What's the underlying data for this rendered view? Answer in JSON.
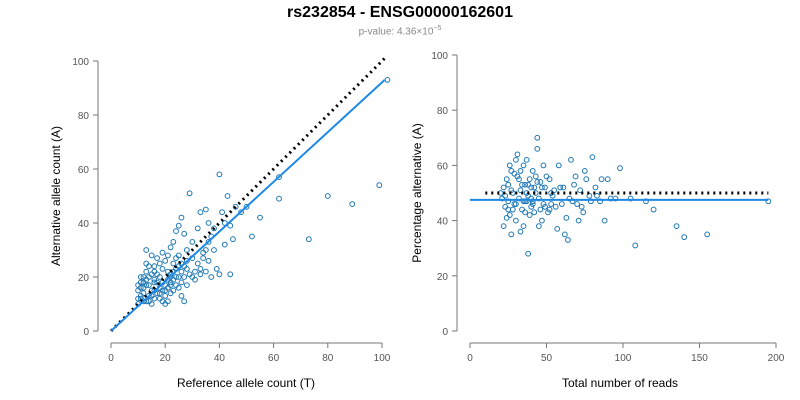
{
  "title": "rs232854 - ENSG00000162601",
  "subtitle_prefix": "p-value: 4.36×10",
  "subtitle_exponent": "−5",
  "chart_data": [
    {
      "type": "scatter",
      "xlabel": "Reference allele count (T)",
      "ylabel": "Alternative allele count (A)",
      "xlim": [
        0,
        100
      ],
      "ylim": [
        0,
        100
      ],
      "xticks": [
        0,
        20,
        40,
        60,
        80,
        100
      ],
      "yticks": [
        0,
        20,
        40,
        60,
        80,
        100
      ],
      "fit_line": {
        "x": [
          0,
          101
        ],
        "y": [
          0,
          93
        ]
      },
      "reference_line": {
        "x": [
          0,
          101
        ],
        "y": [
          0,
          101
        ],
        "style": "dotted"
      },
      "colors": {
        "points": "#1f78b4",
        "fit": "#1e88e5",
        "reference": "#000000"
      },
      "points": [
        [
          10,
          10
        ],
        [
          11,
          12
        ],
        [
          12,
          14
        ],
        [
          13,
          11
        ],
        [
          12,
          16
        ],
        [
          14,
          13
        ],
        [
          15,
          15
        ],
        [
          11,
          18
        ],
        [
          13,
          19
        ],
        [
          12,
          20
        ],
        [
          14,
          17
        ],
        [
          16,
          12
        ],
        [
          15,
          10
        ],
        [
          17,
          14
        ],
        [
          18,
          16
        ],
        [
          16,
          19
        ],
        [
          19,
          18
        ],
        [
          20,
          15
        ],
        [
          18,
          20
        ],
        [
          21,
          22
        ],
        [
          17,
          21
        ],
        [
          19,
          23
        ],
        [
          22,
          17
        ],
        [
          23,
          19
        ],
        [
          20,
          13
        ],
        [
          21,
          11
        ],
        [
          22,
          21
        ],
        [
          24,
          23
        ],
        [
          25,
          20
        ],
        [
          23,
          25
        ],
        [
          26,
          22
        ],
        [
          27,
          24
        ],
        [
          24,
          27
        ],
        [
          28,
          26
        ],
        [
          25,
          28
        ],
        [
          26,
          18
        ],
        [
          22,
          14
        ],
        [
          13,
          22
        ],
        [
          10,
          15
        ],
        [
          11,
          13
        ],
        [
          12,
          11
        ],
        [
          14,
          24
        ],
        [
          13,
          30
        ],
        [
          15,
          28
        ],
        [
          16,
          24
        ],
        [
          17,
          18
        ],
        [
          18,
          12
        ],
        [
          19,
          15
        ],
        [
          20,
          17
        ],
        [
          21,
          19
        ],
        [
          22,
          20
        ],
        [
          23,
          15
        ],
        [
          24,
          17
        ],
        [
          25,
          16
        ],
        [
          26,
          13
        ],
        [
          27,
          11
        ],
        [
          28,
          17
        ],
        [
          30,
          20
        ],
        [
          31,
          22
        ],
        [
          32,
          25
        ],
        [
          33,
          23
        ],
        [
          34,
          27
        ],
        [
          35,
          30
        ],
        [
          36,
          33
        ],
        [
          37,
          35
        ],
        [
          38,
          38
        ],
        [
          36,
          40
        ],
        [
          35,
          45
        ],
        [
          33,
          44
        ],
        [
          40,
          58
        ],
        [
          41,
          44
        ],
        [
          42,
          40
        ],
        [
          43,
          50
        ],
        [
          44,
          39
        ],
        [
          45,
          34
        ],
        [
          46,
          46
        ],
        [
          48,
          44
        ],
        [
          50,
          46
        ],
        [
          52,
          35
        ],
        [
          55,
          42
        ],
        [
          62,
          57
        ],
        [
          62,
          49
        ],
        [
          73,
          34
        ],
        [
          80,
          50
        ],
        [
          89,
          47
        ],
        [
          99,
          54
        ],
        [
          102,
          93
        ],
        [
          32,
          38
        ],
        [
          30,
          33
        ],
        [
          29,
          51
        ],
        [
          28,
          30
        ],
        [
          27,
          36
        ],
        [
          26,
          42
        ],
        [
          25,
          39
        ],
        [
          24,
          37
        ],
        [
          23,
          33
        ],
        [
          22,
          31
        ],
        [
          21,
          28
        ],
        [
          20,
          26
        ],
        [
          19,
          29
        ],
        [
          18,
          25
        ],
        [
          17,
          27
        ],
        [
          16,
          22
        ],
        [
          15,
          21
        ],
        [
          14,
          20
        ],
        [
          13,
          17
        ],
        [
          12,
          18
        ],
        [
          11,
          16
        ],
        [
          10,
          12
        ],
        [
          10,
          17
        ],
        [
          11,
          20
        ],
        [
          14,
          11
        ],
        [
          15,
          13
        ],
        [
          16,
          15
        ],
        [
          18,
          14
        ],
        [
          19,
          11
        ],
        [
          20,
          10
        ],
        [
          21,
          16
        ],
        [
          22,
          18
        ],
        [
          23,
          22
        ],
        [
          24,
          20
        ],
        [
          25,
          24
        ],
        [
          27,
          20
        ],
        [
          29,
          21
        ],
        [
          31,
          19
        ],
        [
          33,
          21
        ],
        [
          35,
          22
        ],
        [
          37,
          20
        ],
        [
          39,
          23
        ],
        [
          40,
          21
        ],
        [
          42,
          32
        ],
        [
          44,
          21
        ],
        [
          38,
          30
        ],
        [
          36,
          26
        ],
        [
          34,
          29
        ],
        [
          30,
          27
        ],
        [
          28,
          23
        ],
        [
          26,
          25
        ],
        [
          13,
          25
        ],
        [
          16,
          18
        ]
      ]
    },
    {
      "type": "scatter",
      "xlabel": "Total number of reads",
      "ylabel": "Percentage alternative (A)",
      "xlim": [
        0,
        200
      ],
      "ylim": [
        0,
        100
      ],
      "xticks": [
        0,
        50,
        100,
        150,
        200
      ],
      "yticks": [
        0,
        20,
        40,
        60,
        80,
        100
      ],
      "fit_line": {
        "x": [
          0,
          195
        ],
        "y": [
          47.5,
          47.5
        ]
      },
      "reference_line": {
        "x": [
          10,
          195
        ],
        "y": [
          50,
          50
        ],
        "style": "dotted"
      },
      "colors": {
        "points": "#1f78b4",
        "fit": "#1e88e5",
        "reference": "#000000"
      },
      "points": [
        [
          20,
          50
        ],
        [
          21,
          48
        ],
        [
          22,
          52
        ],
        [
          23,
          45
        ],
        [
          24,
          55
        ],
        [
          25,
          47
        ],
        [
          25,
          53
        ],
        [
          26,
          42
        ],
        [
          27,
          58
        ],
        [
          28,
          50
        ],
        [
          29,
          46
        ],
        [
          30,
          62
        ],
        [
          30,
          40
        ],
        [
          31,
          56
        ],
        [
          32,
          48
        ],
        [
          33,
          51
        ],
        [
          34,
          44
        ],
        [
          35,
          60
        ],
        [
          35,
          38
        ],
        [
          36,
          53
        ],
        [
          37,
          47
        ],
        [
          38,
          49
        ],
        [
          38,
          28
        ],
        [
          39,
          55
        ],
        [
          40,
          45
        ],
        [
          40,
          52
        ],
        [
          41,
          58
        ],
        [
          42,
          43
        ],
        [
          43,
          50
        ],
        [
          44,
          66
        ],
        [
          44,
          70
        ],
        [
          45,
          48
        ],
        [
          46,
          54
        ],
        [
          47,
          40
        ],
        [
          48,
          46
        ],
        [
          50,
          56
        ],
        [
          52,
          44
        ],
        [
          53,
          50
        ],
        [
          55,
          51
        ],
        [
          57,
          37
        ],
        [
          58,
          60
        ],
        [
          60,
          46
        ],
        [
          61,
          52
        ],
        [
          62,
          35
        ],
        [
          63,
          41
        ],
        [
          65,
          48
        ],
        [
          66,
          62
        ],
        [
          68,
          53
        ],
        [
          70,
          46
        ],
        [
          72,
          51
        ],
        [
          74,
          43
        ],
        [
          76,
          55
        ],
        [
          78,
          49
        ],
        [
          80,
          63
        ],
        [
          82,
          52
        ],
        [
          85,
          47
        ],
        [
          88,
          40
        ],
        [
          90,
          55
        ],
        [
          95,
          48
        ],
        [
          98,
          59
        ],
        [
          105,
          48
        ],
        [
          108,
          31
        ],
        [
          115,
          47
        ],
        [
          120,
          44
        ],
        [
          135,
          38
        ],
        [
          140,
          34
        ],
        [
          155,
          35
        ],
        [
          195,
          47
        ],
        [
          22,
          38
        ],
        [
          24,
          41
        ],
        [
          26,
          60
        ],
        [
          27,
          35
        ],
        [
          29,
          57
        ],
        [
          31,
          64
        ],
        [
          33,
          36
        ],
        [
          34,
          53
        ],
        [
          36,
          47
        ],
        [
          37,
          62
        ],
        [
          39,
          42
        ],
        [
          41,
          47
        ],
        [
          43,
          56
        ],
        [
          45,
          38
        ],
        [
          47,
          52
        ],
        [
          49,
          45
        ],
        [
          51,
          43
        ],
        [
          54,
          49
        ],
        [
          56,
          45
        ],
        [
          59,
          52
        ],
        [
          64,
          33
        ],
        [
          67,
          47
        ],
        [
          69,
          56
        ],
        [
          71,
          40
        ],
        [
          73,
          45
        ],
        [
          75,
          58
        ],
        [
          79,
          47
        ],
        [
          83,
          49
        ],
        [
          86,
          55
        ],
        [
          92,
          48
        ],
        [
          23,
          49
        ],
        [
          28,
          44
        ],
        [
          32,
          55
        ],
        [
          35,
          47
        ],
        [
          37,
          50
        ],
        [
          40,
          48
        ],
        [
          42,
          52
        ],
        [
          46,
          44
        ],
        [
          48,
          60
        ],
        [
          52,
          55
        ],
        [
          25,
          44
        ],
        [
          27,
          51
        ],
        [
          30,
          46
        ],
        [
          33,
          58
        ],
        [
          36,
          43
        ],
        [
          38,
          53
        ],
        [
          41,
          46
        ],
        [
          44,
          54
        ],
        [
          49,
          52
        ],
        [
          53,
          46
        ]
      ]
    }
  ]
}
